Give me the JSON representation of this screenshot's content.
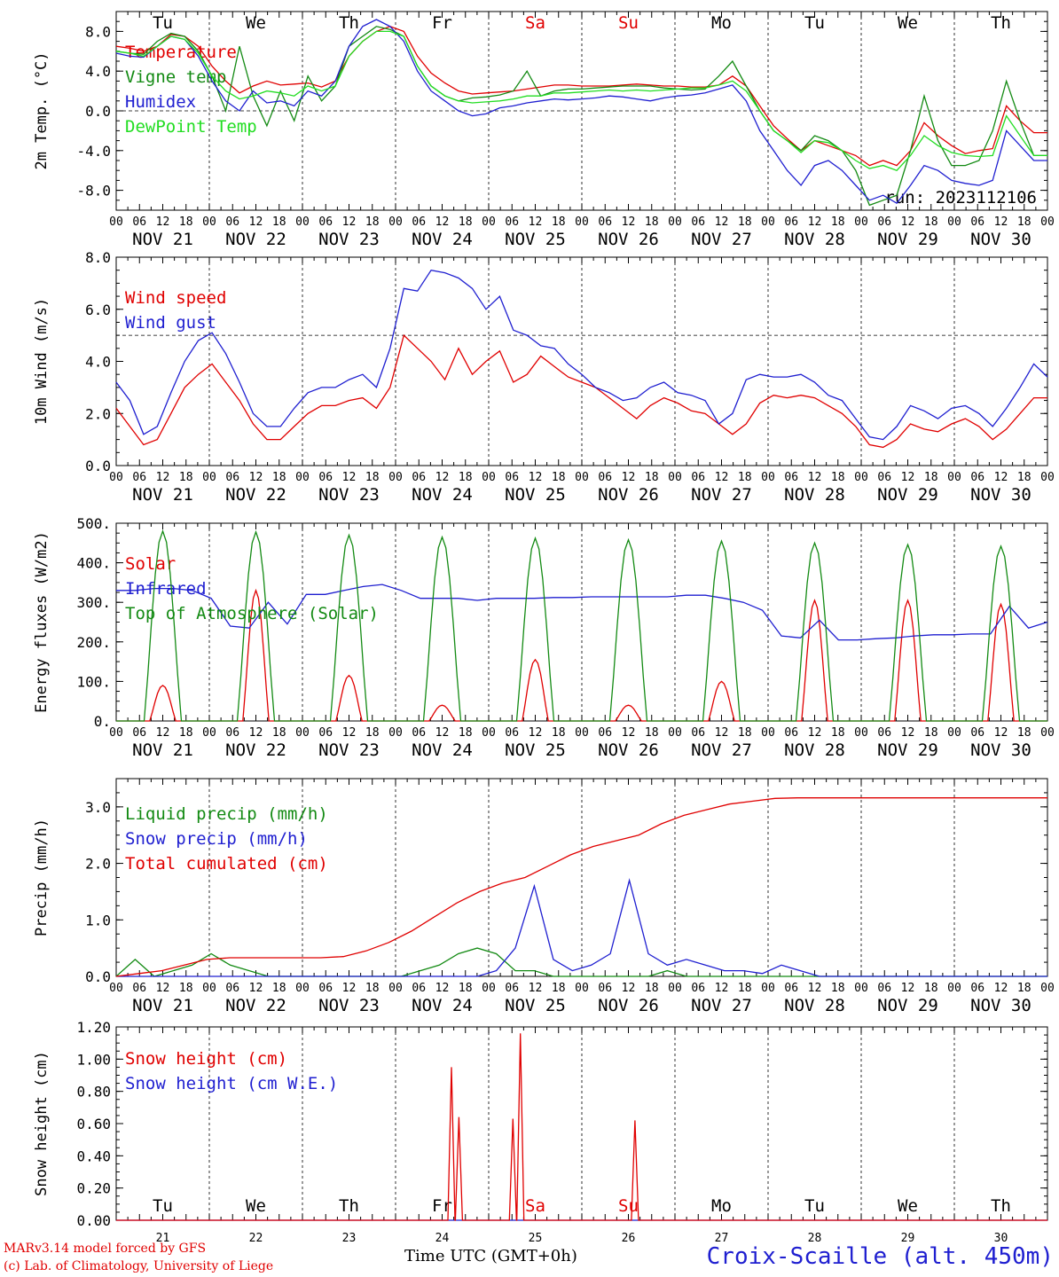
{
  "footer": {
    "model_line": "MARv3.14 model forced by GFS",
    "copyright_line": "(c) Lab. of Climatology, University of Liege",
    "x_title": "Time UTC (GMT+0h)",
    "station": "Croix-Scaille (alt. 450m)"
  },
  "days": {
    "weekday_labels": [
      "Tu",
      "We",
      "Th",
      "Fr",
      "Sa",
      "Su",
      "Mo",
      "Tu",
      "We",
      "Th"
    ],
    "weekend_flags": [
      false,
      false,
      false,
      false,
      true,
      true,
      false,
      false,
      false,
      false
    ],
    "date_labels": [
      "NOV 21",
      "NOV 22",
      "NOV 23",
      "NOV 24",
      "NOV 25",
      "NOV 26",
      "NOV 27",
      "NOV 28",
      "NOV 29",
      "NOV 30"
    ],
    "day_numbers": [
      "21",
      "22",
      "23",
      "24",
      "25",
      "26",
      "27",
      "28",
      "29",
      "30"
    ],
    "hour_labels": [
      "00",
      "06",
      "12",
      "18"
    ],
    "final_hour_label": "00"
  },
  "colors": {
    "red": "#e00000",
    "green": "#138a13",
    "blue": "#1f1fd0",
    "lightgreen": "#22dd22"
  },
  "chart_data": [
    {
      "type": "line",
      "ylabel": "2m Temp. (°C)",
      "ylim": [
        -10,
        10
      ],
      "yticks": [
        "-8.0",
        "-4.0",
        "0.0",
        "4.0",
        "8.0"
      ],
      "ytick_values": [
        -8,
        -4,
        0,
        4,
        8
      ],
      "reference_line": 0,
      "annotation": "run: 2023112106",
      "series": [
        {
          "name": "Temperature",
          "color": "red",
          "values": [
            6.5,
            6.3,
            6.0,
            6.5,
            7.7,
            7.5,
            6.5,
            4.5,
            3.0,
            1.8,
            2.5,
            3.0,
            2.6,
            2.7,
            2.8,
            2.4,
            3.0,
            5.5,
            7.0,
            8.0,
            8.5,
            8.0,
            5.5,
            3.8,
            2.8,
            2.0,
            1.7,
            1.8,
            1.9,
            2.0,
            2.2,
            2.4,
            2.6,
            2.6,
            2.5,
            2.5,
            2.5,
            2.6,
            2.7,
            2.6,
            2.5,
            2.5,
            2.4,
            2.4,
            2.6,
            3.5,
            2.5,
            0.5,
            -1.5,
            -2.8,
            -4.0,
            -3.0,
            -3.5,
            -4.0,
            -4.5,
            -5.5,
            -5.0,
            -5.5,
            -4.0,
            -1.2,
            -2.5,
            -3.5,
            -4.3,
            -4.0,
            -3.8,
            0.5,
            -1.0,
            -2.2,
            -2.2
          ]
        },
        {
          "name": "Vigne temp",
          "color": "green",
          "values": [
            6.0,
            5.8,
            5.7,
            7.0,
            7.8,
            7.5,
            6.0,
            3.5,
            0.0,
            6.5,
            1.5,
            -1.5,
            2.0,
            -1.0,
            3.5,
            1.0,
            2.5,
            6.5,
            7.5,
            8.5,
            8.2,
            7.5,
            4.5,
            2.5,
            1.5,
            1.0,
            1.3,
            1.4,
            1.6,
            2.0,
            4.0,
            1.5,
            2.0,
            2.2,
            2.2,
            2.3,
            2.4,
            2.5,
            2.5,
            2.5,
            2.3,
            2.2,
            2.1,
            2.2,
            3.5,
            5.0,
            2.5,
            0.0,
            -2.0,
            -3.0,
            -4.0,
            -2.5,
            -3.0,
            -4.0,
            -6.0,
            -9.5,
            -9.0,
            -8.5,
            -4.0,
            1.5,
            -3.0,
            -5.5,
            -5.5,
            -5.0,
            -2.0,
            3.0,
            -1.0,
            -4.5,
            -4.5
          ]
        },
        {
          "name": "Humidex",
          "color": "blue",
          "values": [
            5.8,
            5.5,
            5.4,
            6.5,
            7.5,
            7.2,
            5.5,
            3.0,
            1.0,
            0.0,
            2.0,
            0.8,
            1.0,
            0.5,
            2.0,
            1.5,
            3.0,
            6.5,
            8.5,
            9.2,
            8.5,
            7.0,
            4.0,
            2.0,
            1.0,
            0.0,
            -0.5,
            -0.3,
            0.3,
            0.5,
            0.8,
            1.0,
            1.2,
            1.1,
            1.2,
            1.3,
            1.5,
            1.4,
            1.2,
            1.0,
            1.3,
            1.5,
            1.6,
            1.8,
            2.2,
            2.6,
            1.0,
            -2.0,
            -4.0,
            -6.0,
            -7.5,
            -5.5,
            -5.0,
            -6.0,
            -7.5,
            -9.0,
            -8.5,
            -9.3,
            -7.5,
            -5.5,
            -6.0,
            -7.0,
            -7.3,
            -7.5,
            -7.0,
            -2.0,
            -3.5,
            -5.0,
            -5.0
          ]
        },
        {
          "name": "DewPoint Temp",
          "color": "lightgreen",
          "values": [
            6.0,
            5.8,
            5.5,
            6.5,
            7.5,
            7.2,
            5.8,
            3.5,
            2.0,
            1.2,
            1.5,
            2.0,
            1.8,
            1.5,
            2.5,
            2.0,
            2.5,
            5.5,
            7.0,
            8.0,
            8.0,
            7.5,
            4.5,
            2.5,
            1.5,
            1.0,
            0.8,
            0.9,
            1.0,
            1.2,
            1.5,
            1.5,
            1.8,
            1.8,
            1.9,
            2.0,
            2.1,
            2.0,
            2.1,
            2.0,
            2.1,
            2.2,
            2.3,
            2.3,
            2.6,
            3.0,
            2.0,
            0.0,
            -2.0,
            -3.0,
            -4.2,
            -3.0,
            -3.2,
            -4.0,
            -5.0,
            -5.8,
            -5.5,
            -6.0,
            -4.5,
            -2.5,
            -3.5,
            -4.2,
            -4.5,
            -4.6,
            -4.5,
            -0.5,
            -2.5,
            -4.5,
            -4.5
          ]
        }
      ]
    },
    {
      "type": "line",
      "ylabel": "10m Wind (m/s)",
      "ylim": [
        0,
        8
      ],
      "yticks": [
        "0.0",
        "2.0",
        "4.0",
        "6.0",
        "8.0"
      ],
      "ytick_values": [
        0,
        2,
        4,
        6,
        8
      ],
      "reference_line": 5,
      "series": [
        {
          "name": "Wind speed",
          "color": "red",
          "values": [
            2.2,
            1.5,
            0.8,
            1.0,
            2.0,
            3.0,
            3.5,
            3.9,
            3.2,
            2.5,
            1.6,
            1.0,
            1.0,
            1.5,
            2.0,
            2.3,
            2.3,
            2.5,
            2.6,
            2.2,
            3.0,
            5.0,
            4.5,
            4.0,
            3.3,
            4.5,
            3.5,
            4.0,
            4.4,
            3.2,
            3.5,
            4.2,
            3.8,
            3.4,
            3.2,
            3.0,
            2.6,
            2.2,
            1.8,
            2.3,
            2.6,
            2.4,
            2.1,
            2.0,
            1.6,
            1.2,
            1.6,
            2.4,
            2.7,
            2.6,
            2.7,
            2.6,
            2.3,
            2.0,
            1.5,
            0.8,
            0.7,
            1.0,
            1.6,
            1.4,
            1.3,
            1.6,
            1.8,
            1.5,
            1.0,
            1.4,
            2.0,
            2.6,
            2.6
          ]
        },
        {
          "name": "Wind gust",
          "color": "blue",
          "values": [
            3.2,
            2.5,
            1.2,
            1.5,
            2.8,
            4.0,
            4.8,
            5.1,
            4.3,
            3.2,
            2.0,
            1.5,
            1.5,
            2.2,
            2.8,
            3.0,
            3.0,
            3.3,
            3.5,
            3.0,
            4.5,
            6.8,
            6.7,
            7.5,
            7.4,
            7.2,
            6.8,
            6.0,
            6.5,
            5.2,
            5.0,
            4.6,
            4.5,
            3.9,
            3.5,
            3.0,
            2.8,
            2.5,
            2.6,
            3.0,
            3.2,
            2.8,
            2.7,
            2.5,
            1.6,
            2.0,
            3.3,
            3.5,
            3.4,
            3.4,
            3.5,
            3.2,
            2.7,
            2.5,
            1.8,
            1.1,
            1.0,
            1.5,
            2.3,
            2.1,
            1.8,
            2.2,
            2.3,
            2.0,
            1.5,
            2.2,
            3.0,
            3.9,
            3.4
          ]
        }
      ]
    },
    {
      "type": "line",
      "ylabel": "Energy fluxes (W/m2)",
      "ylim": [
        0,
        500
      ],
      "yticks": [
        "0.",
        "100.",
        "200.",
        "300.",
        "400.",
        "500."
      ],
      "ytick_values": [
        0,
        100,
        200,
        300,
        400,
        500
      ],
      "series": [
        {
          "name": "Solar",
          "color": "red",
          "peaks": [
            90,
            330,
            115,
            40,
            155,
            40,
            100,
            305,
            305,
            295
          ]
        },
        {
          "name": "Infrared",
          "color": "blue",
          "values": [
            330,
            330,
            335,
            335,
            330,
            310,
            240,
            235,
            300,
            245,
            320,
            320,
            330,
            340,
            345,
            330,
            310,
            310,
            310,
            305,
            310,
            310,
            310,
            312,
            312,
            314,
            314,
            314,
            314,
            314,
            318,
            318,
            310,
            300,
            280,
            215,
            210,
            255,
            205,
            205,
            208,
            210,
            215,
            218,
            218,
            220,
            220,
            290,
            235,
            250
          ]
        },
        {
          "name": "Top of Atmosphere (Solar)",
          "color": "green",
          "peaks": [
            480,
            478,
            470,
            465,
            462,
            458,
            455,
            450,
            446,
            442
          ]
        }
      ]
    },
    {
      "type": "line",
      "ylabel": "Precip (mm/h)",
      "ylim": [
        0,
        3.5
      ],
      "yticks": [
        "0.0",
        "1.0",
        "2.0",
        "3.0"
      ],
      "ytick_values": [
        0,
        1,
        2,
        3
      ],
      "series": [
        {
          "name": "Liquid precip (mm/h)",
          "color": "green",
          "values": [
            0,
            0.3,
            0,
            0.1,
            0.2,
            0.4,
            0.2,
            0.1,
            0,
            0,
            0,
            0,
            0,
            0,
            0,
            0,
            0.1,
            0.2,
            0.4,
            0.5,
            0.4,
            0.1,
            0.1,
            0,
            0,
            0,
            0,
            0,
            0,
            0.1,
            0,
            0,
            0,
            0,
            0,
            0,
            0,
            0,
            0,
            0,
            0,
            0,
            0,
            0,
            0,
            0,
            0,
            0,
            0,
            0
          ]
        },
        {
          "name": "Snow precip (mm/h)",
          "color": "blue",
          "values": [
            0,
            0,
            0,
            0,
            0,
            0,
            0,
            0,
            0,
            0,
            0,
            0,
            0,
            0,
            0,
            0,
            0,
            0,
            0,
            0,
            0.1,
            0.5,
            1.6,
            0.3,
            0.1,
            0.2,
            0.4,
            1.7,
            0.4,
            0.2,
            0.3,
            0.2,
            0.1,
            0.1,
            0.05,
            0.2,
            0.1,
            0,
            0,
            0,
            0,
            0,
            0,
            0,
            0,
            0,
            0,
            0,
            0,
            0
          ]
        },
        {
          "name": "Total cumulated (cm)",
          "color": "red",
          "values": [
            0,
            0.05,
            0.1,
            0.2,
            0.3,
            0.33,
            0.33,
            0.33,
            0.33,
            0.33,
            0.35,
            0.45,
            0.6,
            0.8,
            1.05,
            1.3,
            1.5,
            1.65,
            1.75,
            1.95,
            2.15,
            2.3,
            2.4,
            2.5,
            2.7,
            2.85,
            2.95,
            3.05,
            3.1,
            3.15,
            3.16,
            3.16,
            3.16,
            3.16,
            3.16,
            3.16,
            3.16,
            3.16,
            3.16,
            3.16,
            3.16,
            3.16
          ]
        }
      ]
    },
    {
      "type": "line",
      "ylabel": "Snow height (cm)",
      "ylim": [
        0,
        1.2
      ],
      "yticks": [
        "0.00",
        "0.20",
        "0.40",
        "0.60",
        "0.80",
        "1.00",
        "1.20"
      ],
      "ytick_values": [
        0,
        0.2,
        0.4,
        0.6,
        0.8,
        1.0,
        1.2
      ],
      "series": [
        {
          "name": "Snow height (cm)",
          "color": "red",
          "spikes": [
            [
              3.6,
              0.95
            ],
            [
              3.68,
              0.64
            ],
            [
              4.26,
              0.63
            ],
            [
              4.34,
              1.16
            ],
            [
              5.57,
              0.62
            ]
          ]
        },
        {
          "name": "Snow height (cm W.E.)",
          "color": "blue",
          "values": []
        }
      ]
    }
  ]
}
